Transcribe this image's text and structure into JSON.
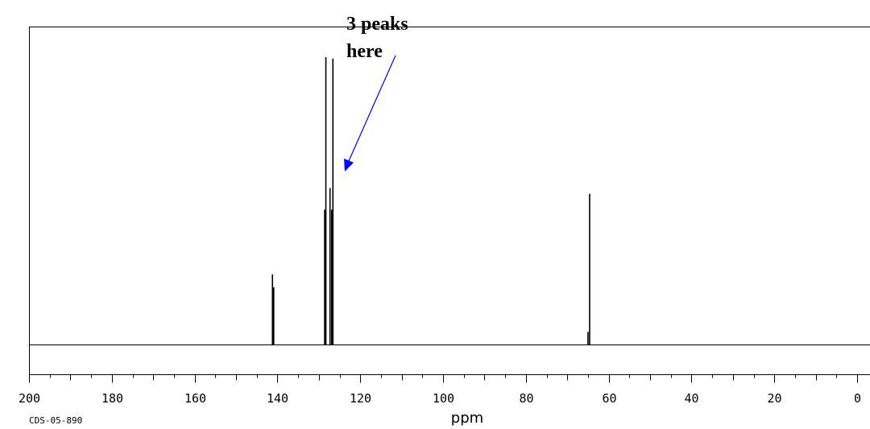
{
  "chart_data": {
    "type": "line",
    "xlabel": "ppm",
    "x_reversed": true,
    "xlim": [
      200,
      0
    ],
    "x_ticks": [
      200,
      180,
      160,
      140,
      120,
      100,
      80,
      60,
      40,
      20,
      0
    ],
    "x_tick_labels": [
      "200",
      "180",
      "160",
      "140",
      "120",
      "100",
      "80",
      "60",
      "40",
      "20",
      "0"
    ],
    "grid": false,
    "peaks": [
      {
        "x": 141.2,
        "y": 0.245
      },
      {
        "x": 140.9,
        "y": 0.2
      },
      {
        "x": 128.6,
        "y": 0.47
      },
      {
        "x": 128.3,
        "y": 1.0
      },
      {
        "x": 127.3,
        "y": 0.545
      },
      {
        "x": 126.9,
        "y": 0.47
      },
      {
        "x": 126.6,
        "y": 0.995
      },
      {
        "x": 65.0,
        "y": 0.045
      },
      {
        "x": 64.6,
        "y": 0.525
      }
    ],
    "annotation": {
      "text_lines": [
        "3 peaks",
        "here"
      ],
      "arrow_color": "#0000ff",
      "arrow_target_x": 124
    },
    "corner_code": "CDS-05-890"
  }
}
